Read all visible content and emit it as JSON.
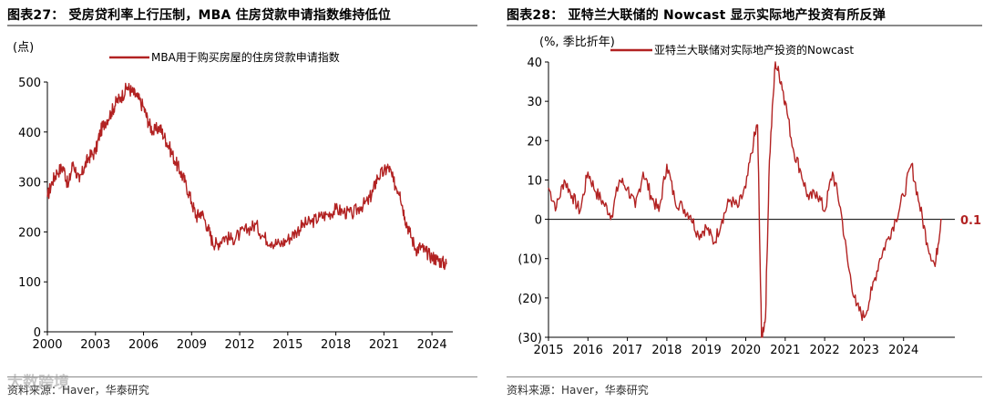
{
  "left": {
    "title": "图表27：  受房贷利率上行压制，MBA 住房贷款申请指数维持低位",
    "source": "资料来源：Haver，华泰研究",
    "watermark": "大数跨境",
    "colors": {
      "line": "#b22222",
      "axis": "#000000"
    },
    "chart_data": {
      "type": "line",
      "ylabel": "(点)",
      "ylim": [
        0,
        500
      ],
      "yticks": [
        0,
        100,
        200,
        300,
        400,
        500
      ],
      "xlim": [
        2000,
        2025.3
      ],
      "xticks": [
        2000,
        2003,
        2006,
        2009,
        2012,
        2015,
        2018,
        2021,
        2024
      ],
      "grid": false,
      "legend_position": "top",
      "series": [
        {
          "name": "MBA用于购买房屋的住房贷款申请指数",
          "x": [
            2000.0,
            2000.3,
            2000.6,
            2001.0,
            2001.3,
            2001.6,
            2002.0,
            2002.3,
            2002.6,
            2003.0,
            2003.3,
            2003.6,
            2004.0,
            2004.3,
            2004.6,
            2005.0,
            2005.3,
            2005.6,
            2006.0,
            2006.3,
            2006.6,
            2007.0,
            2007.3,
            2007.6,
            2008.0,
            2008.3,
            2008.6,
            2009.0,
            2009.3,
            2009.6,
            2010.0,
            2010.3,
            2010.6,
            2011.0,
            2011.5,
            2012.0,
            2012.5,
            2013.0,
            2013.5,
            2014.0,
            2014.5,
            2015.0,
            2015.5,
            2016.0,
            2016.5,
            2017.0,
            2017.5,
            2018.0,
            2018.5,
            2019.0,
            2019.5,
            2020.0,
            2020.3,
            2020.6,
            2021.0,
            2021.3,
            2021.6,
            2022.0,
            2022.3,
            2022.6,
            2023.0,
            2023.3,
            2023.6,
            2024.0,
            2024.3,
            2024.6,
            2024.9
          ],
          "y": [
            270,
            300,
            320,
            330,
            290,
            340,
            300,
            330,
            350,
            360,
            400,
            420,
            440,
            460,
            470,
            490,
            480,
            470,
            450,
            420,
            400,
            410,
            390,
            370,
            340,
            320,
            300,
            260,
            230,
            240,
            210,
            180,
            175,
            190,
            185,
            195,
            205,
            215,
            190,
            180,
            175,
            185,
            200,
            215,
            220,
            230,
            235,
            245,
            240,
            235,
            250,
            260,
            280,
            310,
            320,
            330,
            300,
            280,
            230,
            200,
            165,
            170,
            160,
            150,
            145,
            140,
            135
          ]
        }
      ]
    }
  },
  "right": {
    "title": "图表28：  亚特兰大联储的 Nowcast 显示实际地产投资有所反弹",
    "source": "资料来源：Haver，华泰研究",
    "colors": {
      "line": "#b22222",
      "axis": "#000000"
    },
    "end_label": "0.1",
    "chart_data": {
      "type": "line",
      "ylabel": "(%, 季比折年)",
      "ylim": [
        -30,
        40
      ],
      "yticks": [
        -30,
        -20,
        -10,
        0,
        10,
        20,
        30,
        40
      ],
      "ytick_labels": [
        "(30)",
        "(20)",
        "(10)",
        "0",
        "10",
        "20",
        "30",
        "40"
      ],
      "xlim": [
        2015,
        2025.3
      ],
      "xticks": [
        2015,
        2016,
        2017,
        2018,
        2019,
        2020,
        2021,
        2022,
        2023,
        2024
      ],
      "grid": false,
      "zero_line": true,
      "legend_position": "top",
      "series": [
        {
          "name": "亚特兰大联储对实际地产投资的Nowcast",
          "x": [
            2015.0,
            2015.2,
            2015.4,
            2015.6,
            2015.8,
            2016.0,
            2016.2,
            2016.4,
            2016.6,
            2016.8,
            2017.0,
            2017.2,
            2017.4,
            2017.6,
            2017.8,
            2018.0,
            2018.2,
            2018.4,
            2018.6,
            2018.8,
            2019.0,
            2019.2,
            2019.4,
            2019.6,
            2019.8,
            2020.0,
            2020.2,
            2020.3,
            2020.4,
            2020.5,
            2020.6,
            2020.75,
            2020.9,
            2021.0,
            2021.2,
            2021.4,
            2021.6,
            2021.8,
            2022.0,
            2022.2,
            2022.4,
            2022.6,
            2022.8,
            2023.0,
            2023.2,
            2023.4,
            2023.6,
            2023.8,
            2024.0,
            2024.2,
            2024.4,
            2024.6,
            2024.8,
            2024.95
          ],
          "y": [
            8,
            3,
            10,
            6,
            2,
            12,
            7,
            4,
            1,
            10,
            8,
            3,
            12,
            6,
            2,
            14,
            5,
            3,
            1,
            -4,
            -2,
            -6,
            0,
            5,
            3,
            8,
            20,
            24,
            -30,
            -25,
            15,
            40,
            35,
            30,
            18,
            12,
            5,
            7,
            2,
            12,
            3,
            -12,
            -22,
            -25,
            -18,
            -10,
            -5,
            0,
            6,
            14,
            4,
            -6,
            -12,
            0.1
          ]
        }
      ]
    }
  }
}
